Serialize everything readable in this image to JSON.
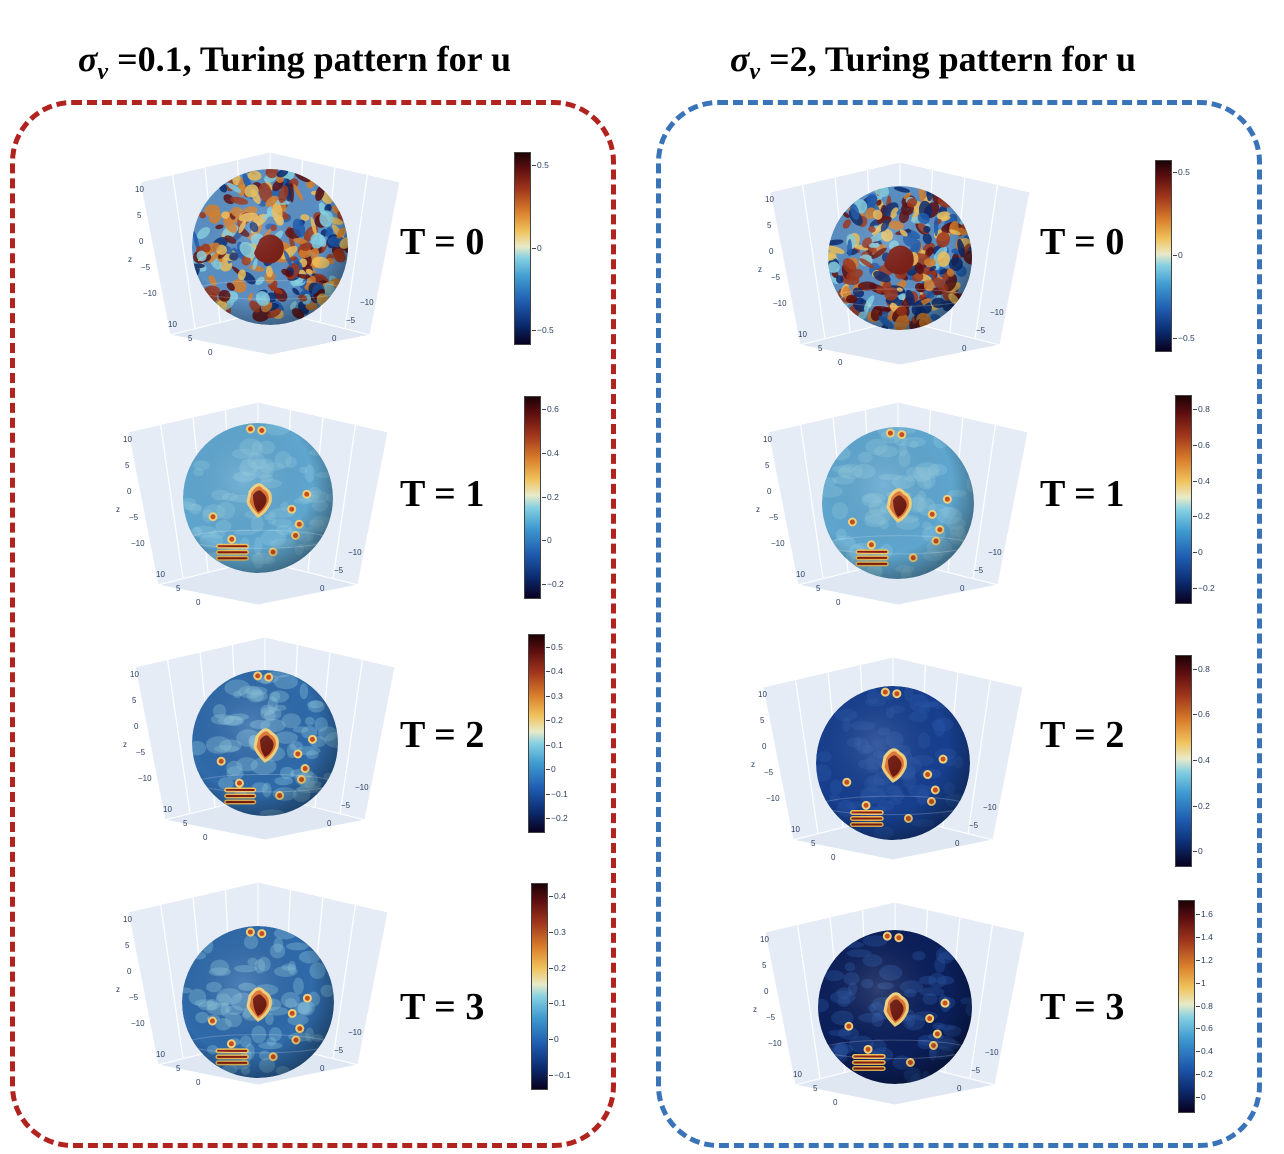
{
  "columns": [
    {
      "title_prefix": "σ",
      "title_subscript": "v",
      "title_suffix": " =0.1, Turing pattern for u",
      "border_color": "#b0231f",
      "panels": [
        {
          "time_label": "T = 0",
          "colorbar_ticks": [
            "0.5",
            "0",
            "−0.5"
          ]
        },
        {
          "time_label": "T = 1",
          "colorbar_ticks": [
            "0.6",
            "0.4",
            "0.2",
            "0",
            "−0.2"
          ]
        },
        {
          "time_label": "T = 2",
          "colorbar_ticks": [
            "0.5",
            "0.4",
            "0.3",
            "0.2",
            "0.1",
            "0",
            "−0.1",
            "−0.2"
          ]
        },
        {
          "time_label": "T = 3",
          "colorbar_ticks": [
            "0.4",
            "0.3",
            "0.2",
            "0.1",
            "0",
            "−0.1"
          ]
        }
      ]
    },
    {
      "title_prefix": "σ",
      "title_subscript": "v",
      "title_suffix": " =2, Turing pattern for u",
      "border_color": "#3a74b8",
      "panels": [
        {
          "time_label": "T = 0",
          "colorbar_ticks": [
            "0.5",
            "0",
            "−0.5"
          ]
        },
        {
          "time_label": "T = 1",
          "colorbar_ticks": [
            "0.8",
            "0.6",
            "0.4",
            "0.2",
            "0",
            "−0.2"
          ]
        },
        {
          "time_label": "T = 2",
          "colorbar_ticks": [
            "0.8",
            "0.6",
            "0.4",
            "0.2",
            "0"
          ]
        },
        {
          "time_label": "T = 3",
          "colorbar_ticks": [
            "1.6",
            "1.4",
            "1.2",
            "1",
            "0.8",
            "0.6",
            "0.4",
            "0.2",
            "0"
          ]
        }
      ]
    }
  ],
  "axis_ticks": {
    "z": [
      "10",
      "5",
      "0",
      "−5",
      "−10"
    ],
    "x": [
      "10",
      "5",
      "0"
    ],
    "y": [
      "−10",
      "−5",
      "0"
    ],
    "z_label": "z"
  }
}
